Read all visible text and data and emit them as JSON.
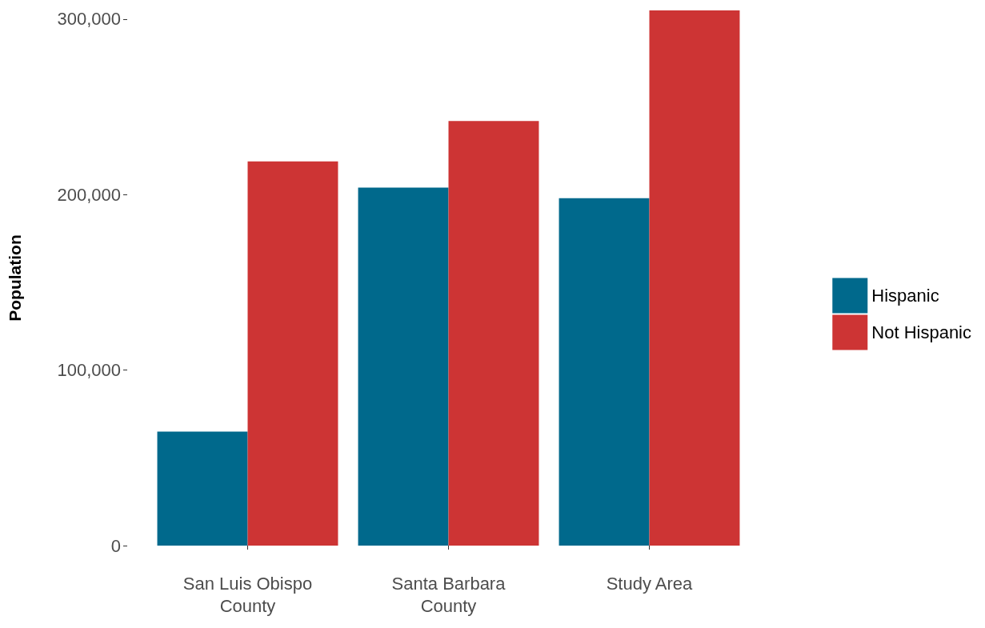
{
  "chart_data": {
    "type": "bar",
    "ylabel": "Population",
    "categories": [
      "San Luis Obispo\nCounty",
      "Santa Barbara\nCounty",
      "Study Area"
    ],
    "series": [
      {
        "name": "Hispanic",
        "color": "#00698c",
        "values": [
          65000,
          204000,
          198000
        ]
      },
      {
        "name": "Not Hispanic",
        "color": "#cd3434",
        "values": [
          219000,
          242000,
          305000
        ]
      }
    ],
    "ylim": [
      0,
      305000
    ],
    "yticks": [
      0,
      {
        "value": 100000,
        "label": "100,000"
      },
      {
        "value": 200000,
        "label": "200,000"
      },
      {
        "value": 300000,
        "label": "300,000"
      }
    ],
    "grid": false,
    "legend": "right"
  }
}
